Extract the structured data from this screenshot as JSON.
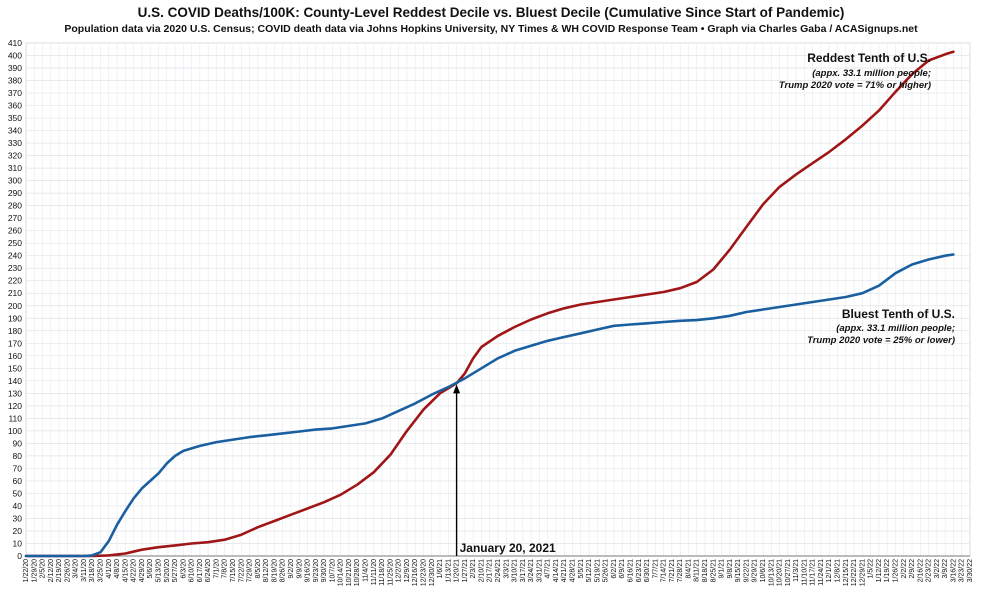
{
  "chart_data": {
    "type": "line",
    "title": "U.S. COVID Deaths/100K: County-Level Reddest Decile vs. Bluest Decile (Cumulative Since Start of Pandemic)",
    "subtitle": "Population data via 2020 U.S. Census; COVID death data via Johns Hopkins University, NY Times & WH COVID Response Team  •  Graph via Charles Gaba / ACASignups.net",
    "ylim": [
      0,
      410
    ],
    "ytick_step": 10,
    "grid": true,
    "x_start": "1/22/20",
    "x_end": "3/30/22",
    "x_tick_labels": [
      "1/22/20",
      "1/29/20",
      "2/5/20",
      "2/12/20",
      "2/19/20",
      "2/26/20",
      "3/4/20",
      "3/11/20",
      "3/18/20",
      "3/25/20",
      "4/1/20",
      "4/8/20",
      "4/15/20",
      "4/22/20",
      "4/29/20",
      "5/6/20",
      "5/13/20",
      "5/20/20",
      "5/27/20",
      "6/3/20",
      "6/10/20",
      "6/17/20",
      "6/24/20",
      "7/1/20",
      "7/8/20",
      "7/15/20",
      "7/22/20",
      "7/29/20",
      "8/5/20",
      "8/12/20",
      "8/19/20",
      "8/26/20",
      "9/2/20",
      "9/9/20",
      "9/16/20",
      "9/23/20",
      "9/30/20",
      "10/7/20",
      "10/14/20",
      "10/21/20",
      "10/28/20",
      "11/4/20",
      "11/11/20",
      "11/18/20",
      "11/25/20",
      "12/2/20",
      "12/9/20",
      "12/16/20",
      "12/23/20",
      "12/30/20",
      "1/6/21",
      "1/13/21",
      "1/20/21",
      "1/27/21",
      "2/3/21",
      "2/10/21",
      "2/17/21",
      "2/24/21",
      "3/3/21",
      "3/10/21",
      "3/17/21",
      "3/24/21",
      "3/31/21",
      "4/7/21",
      "4/14/21",
      "4/21/21",
      "4/28/21",
      "5/5/21",
      "5/12/21",
      "5/19/21",
      "5/26/21",
      "6/2/21",
      "6/9/21",
      "6/16/21",
      "6/23/21",
      "6/30/21",
      "7/7/21",
      "7/14/21",
      "7/21/21",
      "7/28/21",
      "8/4/21",
      "8/11/21",
      "8/18/21",
      "8/25/21",
      "9/1/21",
      "9/8/21",
      "9/15/21",
      "9/22/21",
      "9/29/21",
      "10/6/21",
      "10/13/21",
      "10/20/21",
      "10/27/21",
      "11/3/21",
      "11/10/21",
      "11/17/21",
      "11/24/21",
      "12/1/21",
      "12/8/21",
      "12/15/21",
      "12/22/21",
      "12/29/21",
      "1/5/22",
      "1/12/22",
      "1/19/22",
      "1/26/22",
      "2/2/22",
      "2/9/22",
      "2/16/22",
      "2/23/22",
      "3/2/22",
      "3/9/22",
      "3/16/22",
      "3/23/22",
      "3/30/22"
    ],
    "series": [
      {
        "name": "Reddest Tenth of U.S.",
        "color": "#a01616",
        "points": [
          [
            "1/22/20",
            0
          ],
          [
            "3/18/20",
            0
          ],
          [
            "4/1/20",
            0.5
          ],
          [
            "4/15/20",
            2
          ],
          [
            "4/29/20",
            5
          ],
          [
            "5/13/20",
            7
          ],
          [
            "5/27/20",
            8.5
          ],
          [
            "6/10/20",
            10
          ],
          [
            "6/24/20",
            11
          ],
          [
            "7/8/20",
            13
          ],
          [
            "7/22/20",
            17
          ],
          [
            "8/5/20",
            23
          ],
          [
            "8/19/20",
            28
          ],
          [
            "9/2/20",
            33
          ],
          [
            "9/16/20",
            38
          ],
          [
            "9/30/20",
            43
          ],
          [
            "10/14/20",
            49
          ],
          [
            "10/28/20",
            57
          ],
          [
            "11/11/20",
            67
          ],
          [
            "11/25/20",
            81
          ],
          [
            "12/9/20",
            100
          ],
          [
            "12/23/20",
            117
          ],
          [
            "1/6/21",
            130
          ],
          [
            "1/20/21",
            138
          ],
          [
            "1/27/21",
            146
          ],
          [
            "2/3/21",
            158
          ],
          [
            "2/10/21",
            167
          ],
          [
            "2/24/21",
            176
          ],
          [
            "3/10/21",
            183
          ],
          [
            "3/24/21",
            189
          ],
          [
            "4/7/21",
            194
          ],
          [
            "4/21/21",
            198
          ],
          [
            "5/5/21",
            201
          ],
          [
            "5/19/21",
            203
          ],
          [
            "6/2/21",
            205
          ],
          [
            "6/16/21",
            207
          ],
          [
            "6/30/21",
            209
          ],
          [
            "7/14/21",
            211
          ],
          [
            "7/28/21",
            214
          ],
          [
            "8/11/21",
            219
          ],
          [
            "8/25/21",
            229
          ],
          [
            "9/8/21",
            245
          ],
          [
            "9/22/21",
            263
          ],
          [
            "10/6/21",
            281
          ],
          [
            "10/20/21",
            295
          ],
          [
            "11/3/21",
            305
          ],
          [
            "11/17/21",
            314
          ],
          [
            "12/1/21",
            323
          ],
          [
            "12/15/21",
            333
          ],
          [
            "12/29/21",
            344
          ],
          [
            "1/12/22",
            356
          ],
          [
            "1/26/22",
            371
          ],
          [
            "2/9/22",
            385
          ],
          [
            "2/23/22",
            396
          ],
          [
            "3/9/22",
            401
          ],
          [
            "3/16/22",
            403
          ]
        ]
      },
      {
        "name": "Bluest Tenth of U.S.",
        "color": "#1a5fa0",
        "points": [
          [
            "1/22/20",
            0
          ],
          [
            "3/11/20",
            0
          ],
          [
            "3/18/20",
            0.5
          ],
          [
            "3/25/20",
            3
          ],
          [
            "4/1/20",
            12
          ],
          [
            "4/8/20",
            25
          ],
          [
            "4/15/20",
            36
          ],
          [
            "4/22/20",
            46
          ],
          [
            "4/29/20",
            54
          ],
          [
            "5/6/20",
            60
          ],
          [
            "5/13/20",
            66
          ],
          [
            "5/20/20",
            74
          ],
          [
            "5/27/20",
            80
          ],
          [
            "6/3/20",
            84
          ],
          [
            "6/17/20",
            88
          ],
          [
            "7/1/20",
            91
          ],
          [
            "7/15/20",
            93
          ],
          [
            "7/29/20",
            95
          ],
          [
            "8/12/20",
            96.5
          ],
          [
            "8/26/20",
            98
          ],
          [
            "9/9/20",
            99.5
          ],
          [
            "9/23/20",
            101
          ],
          [
            "10/7/20",
            102
          ],
          [
            "10/21/20",
            104
          ],
          [
            "11/4/20",
            106
          ],
          [
            "11/18/20",
            110
          ],
          [
            "12/2/20",
            116
          ],
          [
            "12/16/20",
            122
          ],
          [
            "12/30/20",
            129
          ],
          [
            "1/13/21",
            135
          ],
          [
            "1/27/21",
            142
          ],
          [
            "2/10/21",
            150
          ],
          [
            "2/24/21",
            158
          ],
          [
            "3/10/21",
            164
          ],
          [
            "3/24/21",
            168
          ],
          [
            "4/7/21",
            172
          ],
          [
            "4/21/21",
            175
          ],
          [
            "5/5/21",
            178
          ],
          [
            "5/19/21",
            181
          ],
          [
            "6/2/21",
            184
          ],
          [
            "6/16/21",
            185
          ],
          [
            "6/30/21",
            186
          ],
          [
            "7/14/21",
            187
          ],
          [
            "7/28/21",
            188
          ],
          [
            "8/11/21",
            188.5
          ],
          [
            "8/25/21",
            190
          ],
          [
            "9/8/21",
            192
          ],
          [
            "9/22/21",
            195
          ],
          [
            "10/6/21",
            197
          ],
          [
            "10/20/21",
            199
          ],
          [
            "11/3/21",
            201
          ],
          [
            "11/17/21",
            203
          ],
          [
            "12/1/21",
            205
          ],
          [
            "12/15/21",
            207
          ],
          [
            "12/29/21",
            210
          ],
          [
            "1/12/22",
            216
          ],
          [
            "1/26/22",
            226
          ],
          [
            "2/9/22",
            233
          ],
          [
            "2/23/22",
            237
          ],
          [
            "3/9/22",
            240
          ],
          [
            "3/16/22",
            241
          ]
        ]
      }
    ],
    "annotations": {
      "red_label": {
        "title": "Reddest Tenth of U.S.",
        "line1": "(appx. 33.1 million people;",
        "line2": "Trump 2020 vote = 71% or higher)"
      },
      "blue_label": {
        "title": "Bluest Tenth of U.S.",
        "line1": "(appx. 33.1 million people;",
        "line2": "Trump 2020 vote = 25% or lower)"
      },
      "marker": {
        "date": "1/20/21",
        "value": 138,
        "label": "January 20, 2021"
      }
    }
  }
}
